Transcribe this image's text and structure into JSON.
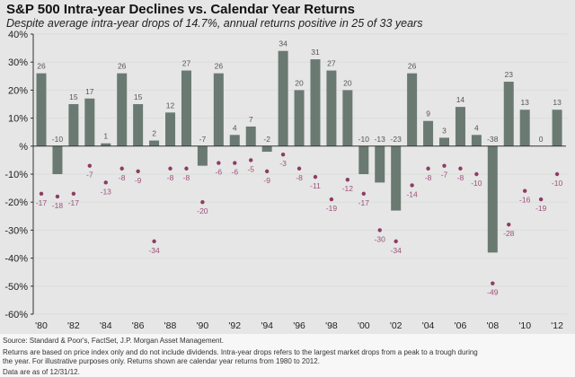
{
  "chart_data": {
    "type": "bar",
    "title": "S&P 500 Intra-year Declines vs. Calendar Year Returns",
    "subtitle": "Despite average intra-year drops of 14.7%, annual returns positive in 25 of 33 years",
    "xlabel": "",
    "ylabel": "",
    "ylim": [
      -60,
      40
    ],
    "yticks": [
      40,
      30,
      20,
      10,
      0,
      -10,
      -20,
      -30,
      -40,
      -50,
      -60
    ],
    "ytick_labels": [
      "40%",
      "30%",
      "20%",
      "10%",
      "%",
      "-10%",
      "-20%",
      "-30%",
      "-40%",
      "-50%",
      "-60%"
    ],
    "categories": [
      "1980",
      "1981",
      "1982",
      "1983",
      "1984",
      "1985",
      "1986",
      "1987",
      "1988",
      "1989",
      "1990",
      "1991",
      "1992",
      "1993",
      "1994",
      "1995",
      "1996",
      "1997",
      "1998",
      "1999",
      "2000",
      "2001",
      "2002",
      "2003",
      "2004",
      "2005",
      "2006",
      "2007",
      "2008",
      "2009",
      "2010",
      "2011",
      "2012"
    ],
    "xtick_labels": [
      "'80",
      "'82",
      "'84",
      "'86",
      "'88",
      "'90",
      "'92",
      "'94",
      "'96",
      "'98",
      "'00",
      "'02",
      "'04",
      "'06",
      "'08",
      "'10",
      "'12"
    ],
    "grid": true,
    "legend": "none",
    "series": [
      {
        "name": "Calendar year return",
        "mark": "bar",
        "color": "#6a7a73",
        "values": [
          26,
          -10,
          15,
          17,
          1,
          26,
          15,
          2,
          12,
          27,
          -7,
          26,
          4,
          7,
          -2,
          34,
          20,
          31,
          27,
          20,
          -10,
          -13,
          -23,
          26,
          9,
          3,
          14,
          4,
          -38,
          23,
          13,
          0,
          13
        ]
      },
      {
        "name": "Intra-year decline",
        "mark": "dot",
        "color": "#8e3b66",
        "label_color": "#a04f7b",
        "values": [
          -17,
          -18,
          -17,
          -7,
          -13,
          -8,
          -9,
          -34,
          -8,
          -8,
          -20,
          -6,
          -6,
          -5,
          -9,
          -3,
          -8,
          -11,
          -19,
          -12,
          -17,
          -30,
          -34,
          -14,
          -8,
          -7,
          -8,
          -10,
          -49,
          -28,
          -16,
          -19,
          -10
        ]
      }
    ]
  },
  "footer": {
    "source": "Source: Standard & Poor's, FactSet, J.P. Morgan Asset Management.",
    "note_line1": "Returns are based on price index only and do not include dividends. Intra-year drops refers to the largest market drops from a peak to a trough during",
    "note_line2": "the year. For illustrative purposes only. Returns shown are calendar year returns from 1980 to 2012.",
    "data_date": "Data are as of 12/31/12."
  }
}
